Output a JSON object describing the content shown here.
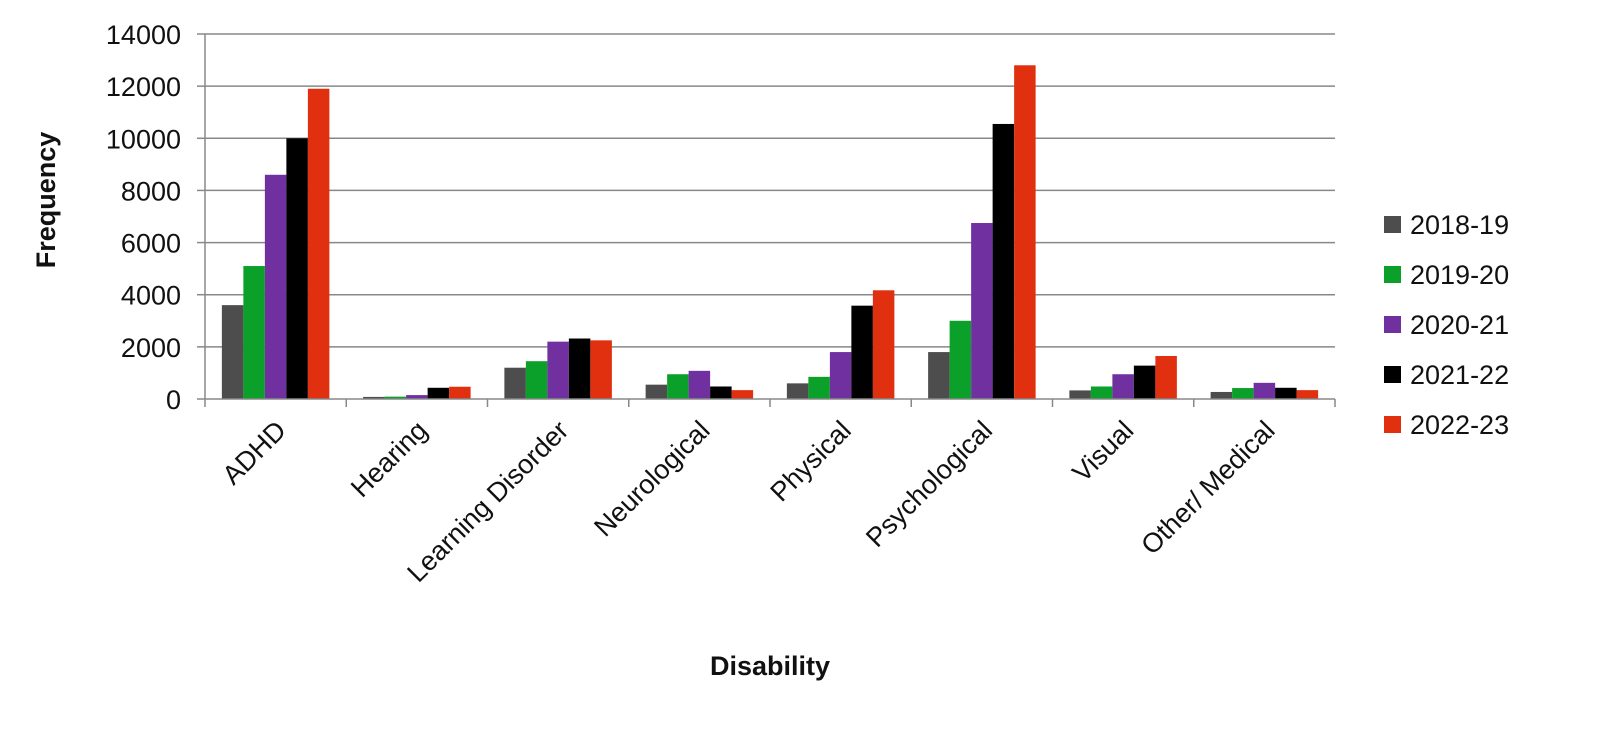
{
  "chart_data": {
    "type": "bar",
    "xlabel": "Disability",
    "ylabel": "Frequency",
    "ylim": [
      0,
      14000
    ],
    "yticks": [
      0,
      2000,
      4000,
      6000,
      8000,
      10000,
      12000,
      14000
    ],
    "grid": true,
    "legend_position": "right",
    "categories": [
      "ADHD",
      "Hearing",
      "Learning Disorder",
      "Neurological",
      "Physical",
      "Psychological",
      "Visual",
      "Other/ Medical"
    ],
    "series": [
      {
        "name": "2018-19",
        "color": "#4d4d4d",
        "values": [
          3600,
          80,
          1200,
          550,
          600,
          1800,
          330,
          270
        ]
      },
      {
        "name": "2019-20",
        "color": "#0aa02a",
        "values": [
          5100,
          90,
          1450,
          950,
          850,
          3000,
          480,
          420
        ]
      },
      {
        "name": "2020-21",
        "color": "#7030a0",
        "values": [
          8600,
          150,
          2200,
          1080,
          1800,
          6750,
          950,
          620
        ]
      },
      {
        "name": "2021-22",
        "color": "#000000",
        "values": [
          10000,
          430,
          2320,
          480,
          3580,
          10550,
          1280,
          430
        ]
      },
      {
        "name": "2022-23",
        "color": "#e03010",
        "values": [
          11900,
          470,
          2250,
          340,
          4170,
          12800,
          1650,
          340
        ]
      }
    ]
  }
}
